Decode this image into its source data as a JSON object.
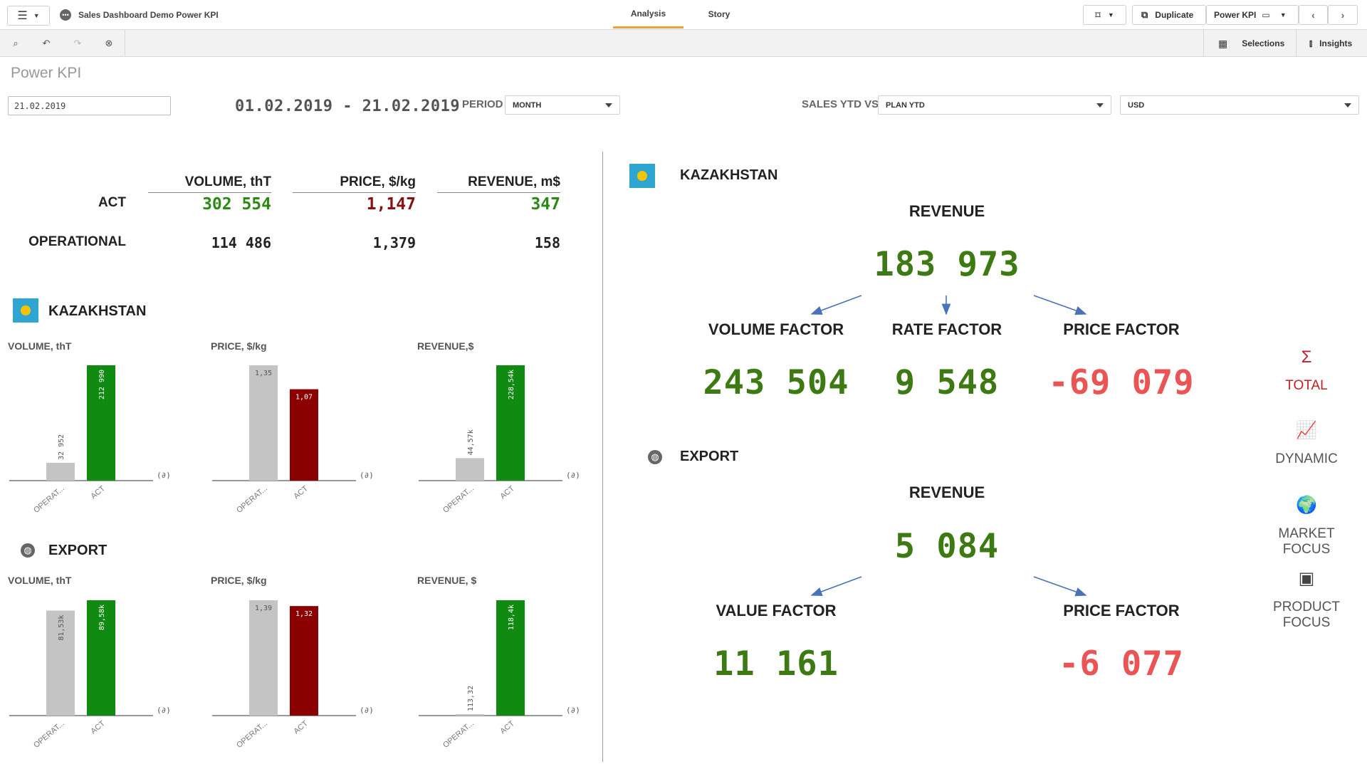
{
  "topbar": {
    "app_title": "Sales Dashboard Demo Power KPI",
    "tabs": [
      {
        "label": "Analysis",
        "active": true
      },
      {
        "label": "Story",
        "active": false
      }
    ],
    "duplicate_label": "Duplicate",
    "sheet_button_label": "Power KPI"
  },
  "toolbar": {
    "selections_label": "Selections",
    "insights_label": "Insights"
  },
  "sheet": {
    "title": "Power KPI",
    "date_value": "21.02.2019",
    "date_range": "01.02.2019 - 21.02.2019",
    "period_label": "PERIOD",
    "period_value": "MONTH",
    "sales_vs_label": "SALES YTD VS",
    "sales_vs_value": "PLAN YTD",
    "currency_value": "USD"
  },
  "kpi_table": {
    "headers": [
      "VOLUME, thT",
      "PRICE, $/kg",
      "REVENUE, m$"
    ],
    "rows": [
      {
        "label": "ACT",
        "values": [
          "302 554",
          "1,147",
          "347"
        ],
        "colors": [
          "#2a8a14",
          "#8b1010",
          "#2a8a14"
        ]
      },
      {
        "label": "OPERATIONAL",
        "values": [
          "114 486",
          "1,379",
          "158"
        ]
      }
    ]
  },
  "kazakhstan": {
    "title": "KAZAKHSTAN",
    "charts": [
      {
        "title": "VOLUME, thT",
        "categories": [
          "OPERAT...",
          "ACT"
        ],
        "values": [
          32952,
          212990
        ],
        "labels": [
          "32 952",
          "212 990"
        ],
        "max": 212990,
        "ghost": "(∂)"
      },
      {
        "title": "PRICE, $/kg",
        "categories": [
          "OPERAT...",
          "ACT"
        ],
        "values": [
          1.35,
          1.07
        ],
        "labels": [
          "1,35",
          "1,07"
        ],
        "max": 1.35,
        "ghost": "(∂)"
      },
      {
        "title": "REVENUE,$",
        "categories": [
          "OPERAT...",
          "ACT"
        ],
        "values": [
          44.57,
          228.54
        ],
        "labels": [
          "44,57k",
          "228,54k"
        ],
        "max": 228.54,
        "ghost": "(∂)"
      }
    ]
  },
  "export": {
    "title": "EXPORT",
    "charts": [
      {
        "title": "VOLUME, thT",
        "categories": [
          "OPERAT...",
          "ACT"
        ],
        "values": [
          81.53,
          89.58
        ],
        "labels": [
          "81,53k",
          "89,58k"
        ],
        "max": 89.58,
        "ghost": "(∂)"
      },
      {
        "title": "PRICE, $/kg",
        "categories": [
          "OPERAT...",
          "ACT"
        ],
        "values": [
          1.39,
          1.32
        ],
        "labels": [
          "1,39",
          "1,32"
        ],
        "max": 1.39,
        "ghost": "(∂)"
      },
      {
        "title": "REVENUE, $",
        "categories": [
          "OPERAT...",
          "ACT"
        ],
        "values": [
          113.32,
          118400
        ],
        "labels": [
          "113,32",
          "118,4k"
        ],
        "max": 118400,
        "ghost": "(∂)"
      }
    ]
  },
  "chart_data": [
    {
      "type": "bar",
      "title": "VOLUME, thT",
      "categories": [
        "OPERAT...",
        "ACT"
      ],
      "values": [
        32952,
        212990
      ]
    },
    {
      "type": "bar",
      "title": "PRICE, $/kg",
      "categories": [
        "OPERAT...",
        "ACT"
      ],
      "values": [
        1.35,
        1.07
      ]
    },
    {
      "type": "bar",
      "title": "REVENUE,$",
      "categories": [
        "OPERAT...",
        "ACT"
      ],
      "values": [
        44570,
        228540
      ]
    },
    {
      "type": "bar",
      "title": "VOLUME, thT",
      "categories": [
        "OPERAT...",
        "ACT"
      ],
      "values": [
        81530,
        89580
      ]
    },
    {
      "type": "bar",
      "title": "PRICE, $/kg",
      "categories": [
        "OPERAT...",
        "ACT"
      ],
      "values": [
        1.39,
        1.32
      ]
    },
    {
      "type": "bar",
      "title": "REVENUE, $",
      "categories": [
        "OPERAT...",
        "ACT"
      ],
      "values": [
        113.32,
        118400
      ]
    }
  ],
  "factor_kz": {
    "section": "KAZAKHSTAN",
    "head": "REVENUE",
    "value": "183 973",
    "factors": [
      {
        "label": "VOLUME FACTOR",
        "value": "243 504"
      },
      {
        "label": "RATE FACTOR",
        "value": "9 548"
      },
      {
        "label": "PRICE FACTOR",
        "value": "-69 079"
      }
    ]
  },
  "factor_export": {
    "section": "EXPORT",
    "head": "REVENUE",
    "value": "5 084",
    "factors": [
      {
        "label": "VALUE FACTOR",
        "value": "11 161"
      },
      {
        "label": "PRICE FACTOR",
        "value": "-6 077"
      }
    ]
  },
  "side_nav": [
    {
      "icon": "Σ",
      "label": "TOTAL",
      "active": true
    },
    {
      "icon": "📈",
      "label": "DYNAMIC",
      "active": false
    },
    {
      "icon": "🌍",
      "label": "MARKET FOCUS",
      "active": false
    },
    {
      "icon": "▣",
      "label": "PRODUCT FOCUS",
      "active": false
    }
  ],
  "colors": {
    "gray_bar": "#c4c4c4",
    "green_bar": "#108a10",
    "red_bar": "#8b0000",
    "accent": "#e8a33a",
    "green_text": "#3d7a14",
    "red_text": "#ea5454",
    "nav_active": "#c0202a"
  }
}
